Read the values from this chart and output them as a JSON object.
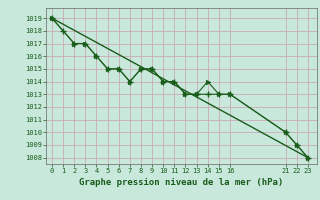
{
  "title": "Graphe pression niveau de la mer (hPa)",
  "bg_color": "#c8e8dc",
  "grid_color": "#c8aab4",
  "line_color": "#1a5c1a",
  "x_ticks": [
    0,
    1,
    2,
    3,
    4,
    5,
    6,
    7,
    8,
    9,
    10,
    11,
    12,
    13,
    14,
    15,
    16,
    21,
    22,
    23
  ],
  "x_tick_labels": [
    "0",
    "1",
    "2",
    "3",
    "4",
    "5",
    "6",
    "7",
    "8",
    "9",
    "10",
    "11",
    "12",
    "13",
    "14",
    "15",
    "16",
    "21",
    "22",
    "23"
  ],
  "ylim": [
    1007.5,
    1019.8
  ],
  "xlim": [
    -0.5,
    23.8
  ],
  "yticks": [
    1008,
    1009,
    1010,
    1011,
    1012,
    1013,
    1014,
    1015,
    1016,
    1017,
    1018,
    1019
  ],
  "line1_x": [
    0,
    1,
    2,
    3,
    4,
    5,
    6,
    7,
    8,
    9,
    10,
    11,
    12,
    13,
    14,
    15,
    16,
    21,
    22,
    23
  ],
  "line1_y": [
    1019,
    1018,
    1017,
    1017,
    1016,
    1015,
    1015,
    1014,
    1015,
    1015,
    1014,
    1014,
    1013,
    1013,
    1013,
    1013,
    1013,
    1010,
    1009,
    1008
  ],
  "line2_x": [
    0,
    2,
    3,
    4,
    5,
    6,
    7,
    8,
    9,
    10,
    11,
    12,
    13,
    14,
    15,
    16,
    21,
    22,
    23
  ],
  "line2_y": [
    1019,
    1017,
    1017,
    1016,
    1015,
    1015,
    1014,
    1015,
    1015,
    1014,
    1014,
    1013,
    1013,
    1014,
    1013,
    1013,
    1010,
    1009,
    1008
  ],
  "line3_x": [
    0,
    23
  ],
  "line3_y": [
    1019,
    1008
  ]
}
